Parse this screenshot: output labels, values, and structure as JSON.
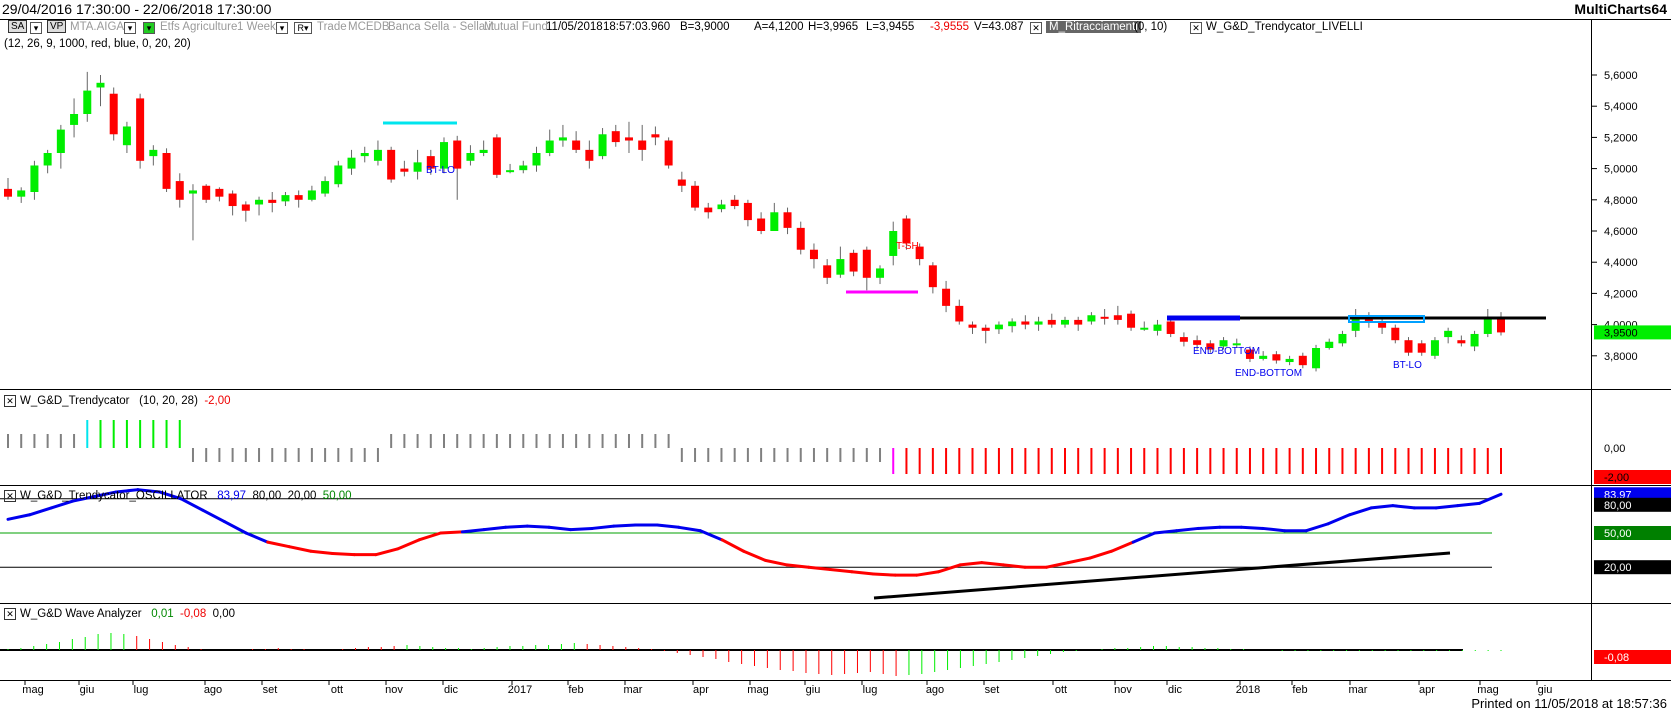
{
  "titlebar": {
    "range": "29/04/2016 17:30:00 - 22/06/2018 17:30:00",
    "app": "MultiCharts64"
  },
  "infobar": {
    "sa": "SA",
    "vp": "VP",
    "symbol": "MTA.AIGA",
    "desc": "Etfs Agriculture",
    "period": "1 Week",
    "r": "R",
    "trade": "Trade",
    "exch": "MCEDB",
    "broker": "Banca Sella - Sella.it",
    "fund": "Mutual Fund",
    "date": "11/05/2018",
    "time": "18:57:03.960",
    "bid": "B=3,9000",
    "ask": "A=4,1200",
    "high": "H=3,9965",
    "low": "L=3,9455",
    "change": "-3,9555",
    "volume": "V=43.087",
    "ind1": "M_Ritracciamenti",
    "ind1_params": "(0,  10)",
    "ind2": "W_G&D_Trendycator_LIVELLI"
  },
  "params_line": "(12,  26,  9,  1000,  red,  blue,  0,  20,  20)",
  "colors": {
    "up": "#00ee00",
    "down": "#ff0000",
    "blue": "#0000ee",
    "cyan": "#00e5ee",
    "magenta": "#ff00ff",
    "neutral": "#808080"
  },
  "price_pane": {
    "axis_labels": [
      "5,6000",
      "5,4000",
      "5,2000",
      "5,0000",
      "4,8000",
      "4,6000",
      "4,4000",
      "4,2000",
      "4,0000",
      "3,8000"
    ],
    "last_price": "3,9500",
    "annotations": [
      "BT-LO",
      "T-SH",
      "END-BOTTOM",
      "END-BOTTOM",
      "BT-LO"
    ]
  },
  "trendy_pane": {
    "name": "W_G&D_Trendycator",
    "params": "(10,  20,  28)",
    "value": "-2,00",
    "axis_value": "0,00",
    "axis_badge": "-2,00"
  },
  "osc_pane": {
    "name": "W_G&D_Trendycator_OSCILLATOR",
    "v1": "83,97",
    "v2": "80,00",
    "v3": "20,00",
    "v4": "50,00",
    "badge_top": "83,97",
    "badge_80": "80,00",
    "badge_50": "50,00",
    "badge_20": "20,00"
  },
  "wave_pane": {
    "name": "W_G&D Wave Analyzer",
    "v1": "0,01",
    "v2": "-0,08",
    "v3": "0,00",
    "badge": "-0,08"
  },
  "x_axis": {
    "labels": [
      "mag",
      "giu",
      "lug",
      "ago",
      "set",
      "ott",
      "nov",
      "dic",
      "2017",
      "feb",
      "mar",
      "apr",
      "mag",
      "giu",
      "lug",
      "ago",
      "set",
      "ott",
      "nov",
      "dic",
      "2018",
      "feb",
      "mar",
      "apr",
      "mag",
      "giu"
    ]
  },
  "footer": "Printed on 11/05/2018 at 18:57:36",
  "chart_data": {
    "type": "candlestick",
    "title": "MTA.AIGA Etfs Agriculture 1 Week",
    "ylim": [
      3.6,
      5.7
    ],
    "candles": [
      [
        4.87,
        4.82,
        4.94,
        4.8
      ],
      [
        4.82,
        4.86,
        4.88,
        4.78
      ],
      [
        4.85,
        5.02,
        5.05,
        4.8
      ],
      [
        5.02,
        5.1,
        5.12,
        4.97
      ],
      [
        5.1,
        5.25,
        5.28,
        5.0
      ],
      [
        5.28,
        5.35,
        5.45,
        5.2
      ],
      [
        5.35,
        5.5,
        5.62,
        5.3
      ],
      [
        5.52,
        5.55,
        5.6,
        5.4
      ],
      [
        5.48,
        5.22,
        5.52,
        5.18
      ],
      [
        5.15,
        5.27,
        5.3,
        5.1
      ],
      [
        5.45,
        5.05,
        5.48,
        5.0
      ],
      [
        5.08,
        5.12,
        5.15,
        5.02
      ],
      [
        5.1,
        4.87,
        5.13,
        4.85
      ],
      [
        4.92,
        4.8,
        4.97,
        4.75
      ],
      [
        4.84,
        4.86,
        4.9,
        4.54
      ],
      [
        4.89,
        4.8,
        4.9,
        4.78
      ],
      [
        4.87,
        4.82,
        4.88,
        4.79
      ],
      [
        4.84,
        4.76,
        4.86,
        4.7
      ],
      [
        4.77,
        4.73,
        4.79,
        4.66
      ],
      [
        4.77,
        4.8,
        4.82,
        4.7
      ],
      [
        4.8,
        4.78,
        4.85,
        4.72
      ],
      [
        4.79,
        4.83,
        4.85,
        4.76
      ],
      [
        4.83,
        4.8,
        4.86,
        4.75
      ],
      [
        4.8,
        4.86,
        4.89,
        4.79
      ],
      [
        4.84,
        4.92,
        4.95,
        4.82
      ],
      [
        4.9,
        5.02,
        5.05,
        4.88
      ],
      [
        5.0,
        5.07,
        5.12,
        4.96
      ],
      [
        5.08,
        5.1,
        5.14,
        5.04
      ],
      [
        5.05,
        5.12,
        5.18,
        5.02
      ],
      [
        5.12,
        4.93,
        5.14,
        4.91
      ],
      [
        5.0,
        4.98,
        5.05,
        4.95
      ],
      [
        4.98,
        5.04,
        5.12,
        4.93
      ],
      [
        5.08,
        5.0,
        5.12,
        4.96
      ],
      [
        5.0,
        5.17,
        5.2,
        4.97
      ],
      [
        5.18,
        5.0,
        5.21,
        4.8
      ],
      [
        5.05,
        5.1,
        5.15,
        5.02
      ],
      [
        5.1,
        5.12,
        5.18,
        5.08
      ],
      [
        5.2,
        4.96,
        5.22,
        4.94
      ],
      [
        4.98,
        4.99,
        5.03,
        4.97
      ],
      [
        4.99,
        5.02,
        5.05,
        4.97
      ],
      [
        5.02,
        5.1,
        5.14,
        4.98
      ],
      [
        5.1,
        5.18,
        5.25,
        5.08
      ],
      [
        5.18,
        5.2,
        5.28,
        5.14
      ],
      [
        5.18,
        5.12,
        5.24,
        5.1
      ],
      [
        5.12,
        5.05,
        5.18,
        5.0
      ],
      [
        5.08,
        5.22,
        5.26,
        5.06
      ],
      [
        5.24,
        5.17,
        5.28,
        5.14
      ],
      [
        5.2,
        5.18,
        5.3,
        5.1
      ],
      [
        5.18,
        5.12,
        5.28,
        5.05
      ],
      [
        5.22,
        5.2,
        5.27,
        5.15
      ],
      [
        5.18,
        5.02,
        5.2,
        5.0
      ],
      [
        4.93,
        4.89,
        4.98,
        4.85
      ],
      [
        4.89,
        4.75,
        4.92,
        4.73
      ],
      [
        4.75,
        4.72,
        4.78,
        4.68
      ],
      [
        4.74,
        4.77,
        4.8,
        4.72
      ],
      [
        4.8,
        4.76,
        4.83,
        4.74
      ],
      [
        4.78,
        4.67,
        4.8,
        4.63
      ],
      [
        4.68,
        4.6,
        4.72,
        4.58
      ],
      [
        4.6,
        4.72,
        4.78,
        4.6
      ],
      [
        4.72,
        4.62,
        4.75,
        4.58
      ],
      [
        4.62,
        4.48,
        4.66,
        4.45
      ],
      [
        4.48,
        4.42,
        4.52,
        4.36
      ],
      [
        4.38,
        4.3,
        4.42,
        4.26
      ],
      [
        4.32,
        4.42,
        4.5,
        4.3
      ],
      [
        4.46,
        4.34,
        4.48,
        4.31
      ],
      [
        4.48,
        4.3,
        4.5,
        4.22
      ],
      [
        4.3,
        4.36,
        4.38,
        4.26
      ],
      [
        4.44,
        4.6,
        4.66,
        4.38
      ],
      [
        4.68,
        4.52,
        4.7,
        4.48
      ],
      [
        4.5,
        4.42,
        4.52,
        4.38
      ],
      [
        4.38,
        4.24,
        4.4,
        4.2
      ],
      [
        4.23,
        4.12,
        4.28,
        4.08
      ],
      [
        4.12,
        4.02,
        4.16,
        4.0
      ],
      [
        4.0,
        3.98,
        4.02,
        3.94
      ],
      [
        3.98,
        3.96,
        4.0,
        3.88
      ],
      [
        3.97,
        4.0,
        4.02,
        3.94
      ],
      [
        3.99,
        4.02,
        4.04,
        3.95
      ],
      [
        4.02,
        4.0,
        4.06,
        3.97
      ],
      [
        4.0,
        4.02,
        4.05,
        3.96
      ],
      [
        4.03,
        4.0,
        4.07,
        3.98
      ],
      [
        4.0,
        4.03,
        4.05,
        3.98
      ],
      [
        4.03,
        4.0,
        4.05,
        3.96
      ],
      [
        4.02,
        4.06,
        4.08,
        4.0
      ],
      [
        4.05,
        4.04,
        4.1,
        4.0
      ],
      [
        4.06,
        4.03,
        4.12,
        4.0
      ],
      [
        4.07,
        3.98,
        4.09,
        3.96
      ],
      [
        3.98,
        3.98,
        4.02,
        3.96
      ],
      [
        3.96,
        4.0,
        4.03,
        3.93
      ],
      [
        4.02,
        3.94,
        4.05,
        3.92
      ],
      [
        3.92,
        3.89,
        3.95,
        3.86
      ],
      [
        3.9,
        3.87,
        3.93,
        3.84
      ],
      [
        3.88,
        3.84,
        3.9,
        3.82
      ],
      [
        3.86,
        3.9,
        3.92,
        3.84
      ],
      [
        3.88,
        3.88,
        3.91,
        3.85
      ],
      [
        3.84,
        3.78,
        3.86,
        3.76
      ],
      [
        3.78,
        3.8,
        3.83,
        3.77
      ],
      [
        3.81,
        3.77,
        3.83,
        3.75
      ],
      [
        3.76,
        3.78,
        3.8,
        3.74
      ],
      [
        3.8,
        3.74,
        3.82,
        3.72
      ],
      [
        3.72,
        3.85,
        3.87,
        3.7
      ],
      [
        3.85,
        3.89,
        3.91,
        3.84
      ],
      [
        3.88,
        3.94,
        3.96,
        3.86
      ],
      [
        3.96,
        4.06,
        4.1,
        3.92
      ],
      [
        4.06,
        4.02,
        4.08,
        3.98
      ],
      [
        4.02,
        3.98,
        4.04,
        3.94
      ],
      [
        3.98,
        3.9,
        4.0,
        3.88
      ],
      [
        3.9,
        3.82,
        3.92,
        3.8
      ],
      [
        3.88,
        3.82,
        3.9,
        3.8
      ],
      [
        3.8,
        3.9,
        3.92,
        3.78
      ],
      [
        3.92,
        3.96,
        3.98,
        3.88
      ],
      [
        3.9,
        3.88,
        3.93,
        3.86
      ],
      [
        3.86,
        3.94,
        3.96,
        3.83
      ],
      [
        3.94,
        4.04,
        4.1,
        3.92
      ],
      [
        4.04,
        3.95,
        4.08,
        3.93
      ]
    ]
  }
}
